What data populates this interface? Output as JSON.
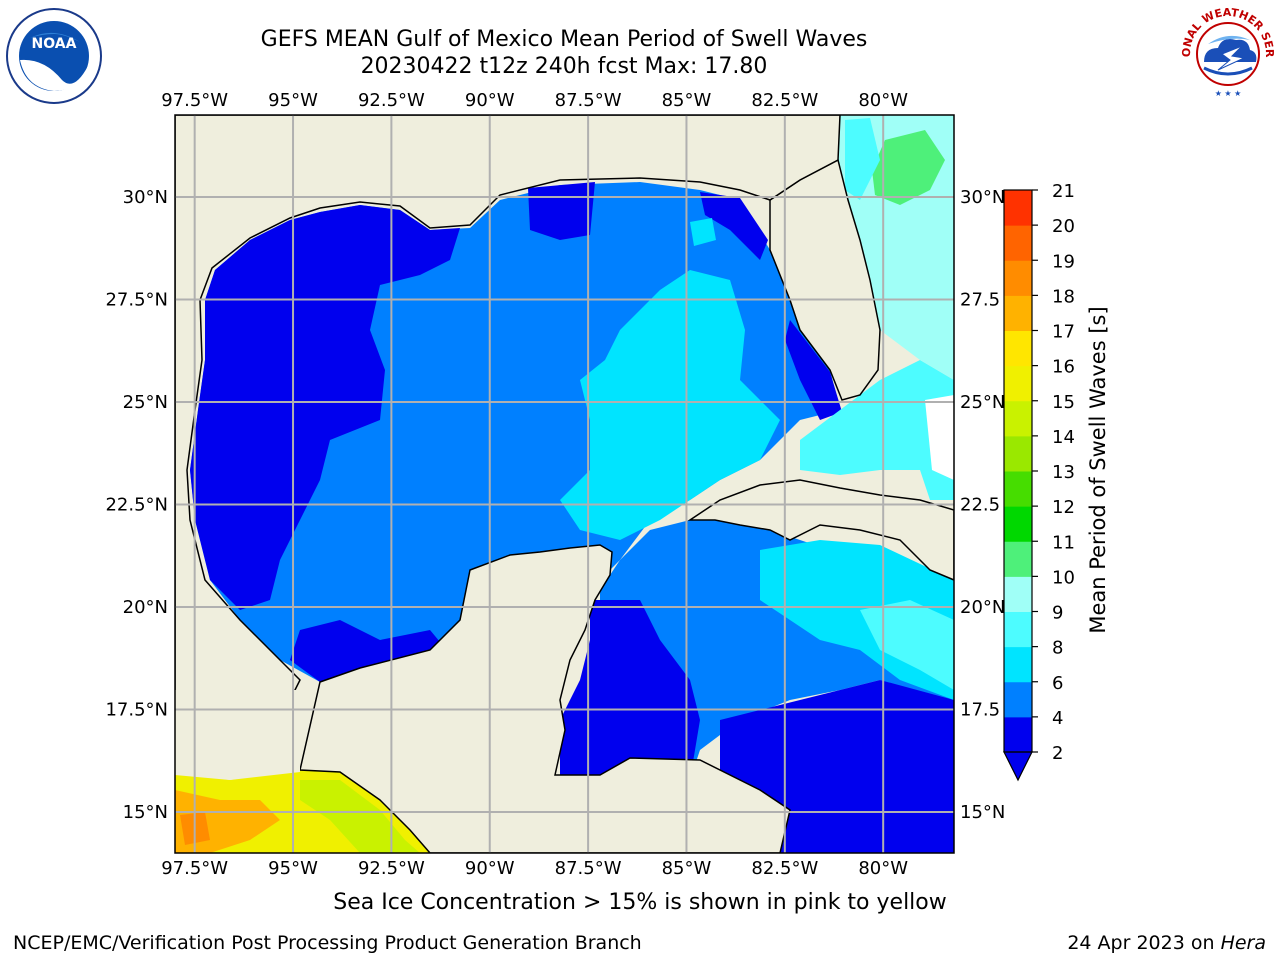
{
  "header": {
    "title": "GEFS MEAN Gulf of Mexico Mean Period of Swell Waves",
    "subtitle": "20230422 t12z 240h fcst   Max: 17.80"
  },
  "footer": {
    "note": "Sea Ice Concentration > 15% is shown in pink to yellow",
    "credit": "NCEP/EMC/Verification Post Processing Product Generation Branch",
    "date_prefix": "24 Apr 2023 on ",
    "machine": "Hera"
  },
  "logos": {
    "left": "NOAA",
    "right_text": "NATIONAL WEATHER SERVICE"
  },
  "colors": {
    "land": "#efeedd",
    "no_data": "#ffffff",
    "grid": "#b0b0b0"
  },
  "chart_data": {
    "type": "heatmap",
    "title": "GEFS MEAN Gulf of Mexico Mean Period of Swell Waves",
    "subtitle": "20230422 t12z 240h fcst   Max: 17.80",
    "max_value": 17.8,
    "x_ticks": [
      "97.5°W",
      "95°W",
      "92.5°W",
      "90°W",
      "87.5°W",
      "85°W",
      "82.5°W",
      "80°W"
    ],
    "x_tick_values": [
      -97.5,
      -95,
      -92.5,
      -90,
      -87.5,
      -85,
      -82.5,
      -80
    ],
    "y_ticks_left": [
      "30°N",
      "27.5°N",
      "25°N",
      "22.5°N",
      "20°N",
      "17.5°N",
      "15°N"
    ],
    "y_ticks_right": [
      "30°N",
      "27.5",
      "25°N",
      "22.5",
      "20°N",
      "17.5",
      "15°N"
    ],
    "y_tick_values": [
      30,
      27.5,
      25,
      22.5,
      20,
      17.5,
      15
    ],
    "xlim": [
      -98,
      -78.2
    ],
    "ylim": [
      14,
      32
    ],
    "grid": true,
    "colorbar": {
      "label": "Mean Period of Swell Waves [s]",
      "ticks": [
        "2",
        "4",
        "6",
        "8",
        "9",
        "10",
        "11",
        "12",
        "13",
        "14",
        "15",
        "16",
        "17",
        "18",
        "19",
        "20",
        "21"
      ],
      "levels": [
        2,
        4,
        6,
        8,
        9,
        10,
        11,
        12,
        13,
        14,
        15,
        16,
        17,
        18,
        19,
        20,
        21
      ],
      "colors": [
        "#0000ee",
        "#0080ff",
        "#00e4ff",
        "#4dfcff",
        "#a0fff7",
        "#4ef07a",
        "#00d800",
        "#46dd00",
        "#9ae800",
        "#c9f200",
        "#f0f000",
        "#ffe600",
        "#ffb200",
        "#ff8c00",
        "#ff6400",
        "#ff3200",
        "#ff0000"
      ],
      "extend": "min"
    }
  }
}
